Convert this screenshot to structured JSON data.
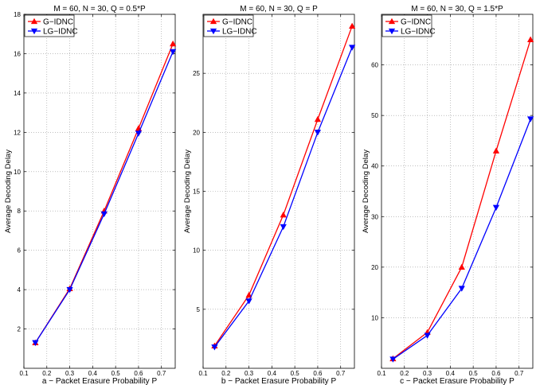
{
  "colors": {
    "g_idnc": "#ff0000",
    "lg_idnc": "#0000ff",
    "grid": "#999999"
  },
  "chart_data": [
    {
      "type": "line",
      "title": "M = 60, N = 30, Q = 0.5*P",
      "xlabel": "a − Packet Erasure Probability P",
      "ylabel": "Average Decoding Delay",
      "xlim": [
        0.1,
        0.76
      ],
      "ylim": [
        0,
        18
      ],
      "xticks": [
        0.1,
        0.2,
        0.3,
        0.4,
        0.5,
        0.6,
        0.7
      ],
      "xtick_labels": [
        "0.1",
        "0.2",
        "0.3",
        "0.4",
        "0.5",
        "0.6",
        "0.7"
      ],
      "yticks": [
        2,
        4,
        6,
        8,
        10,
        12,
        14,
        16,
        18
      ],
      "ytick_labels": [
        "2",
        "4",
        "6",
        "8",
        "10",
        "12",
        "14",
        "16",
        "18"
      ],
      "grid": true,
      "legend": "top-left",
      "x": [
        0.15,
        0.3,
        0.45,
        0.6,
        0.75
      ],
      "series": [
        {
          "name": "G−IDNC",
          "marker": "triangle-up",
          "values": [
            1.3,
            4.05,
            8.0,
            12.2,
            16.5
          ]
        },
        {
          "name": "LG−IDNC",
          "marker": "triangle-down",
          "values": [
            1.3,
            4.0,
            7.85,
            11.95,
            16.1
          ]
        }
      ]
    },
    {
      "type": "line",
      "title": "M = 60, N = 30, Q = P",
      "xlabel": "b − Packet Erasure Probability P",
      "ylabel": "Average Decoding Delay",
      "xlim": [
        0.1,
        0.76
      ],
      "ylim": [
        0,
        30
      ],
      "xticks": [
        0.1,
        0.2,
        0.3,
        0.4,
        0.5,
        0.6,
        0.7
      ],
      "xtick_labels": [
        "0.1",
        "0.2",
        "0.3",
        "0.4",
        "0.5",
        "0.6",
        "0.7"
      ],
      "yticks": [
        5,
        10,
        15,
        20,
        25
      ],
      "ytick_labels": [
        "5",
        "10",
        "15",
        "20",
        "25"
      ],
      "grid": true,
      "legend": "top-left",
      "x": [
        0.15,
        0.3,
        0.45,
        0.6,
        0.75
      ],
      "series": [
        {
          "name": "G−IDNC",
          "marker": "triangle-up",
          "values": [
            1.9,
            6.2,
            13.0,
            21.1,
            29.0
          ]
        },
        {
          "name": "LG−IDNC",
          "marker": "triangle-down",
          "values": [
            1.8,
            5.7,
            12.0,
            20.0,
            27.2
          ]
        }
      ]
    },
    {
      "type": "line",
      "title": "M = 60, N = 30, Q = 1.5*P",
      "xlabel": "c − Packet Erasure Probability P",
      "ylabel": "Average Decoding Delay",
      "xlim": [
        0.1,
        0.76
      ],
      "ylim": [
        0,
        70
      ],
      "xticks": [
        0.1,
        0.2,
        0.3,
        0.4,
        0.5,
        0.6,
        0.7
      ],
      "xtick_labels": [
        "0.1",
        "0.2",
        "0.3",
        "0.4",
        "0.5",
        "0.6",
        "0.7"
      ],
      "yticks": [
        10,
        20,
        30,
        40,
        50,
        60
      ],
      "ytick_labels": [
        "10",
        "20",
        "30",
        "40",
        "50",
        "60"
      ],
      "grid": true,
      "legend": "top-left",
      "x": [
        0.15,
        0.3,
        0.45,
        0.6,
        0.75
      ],
      "series": [
        {
          "name": "G−IDNC",
          "marker": "triangle-up",
          "values": [
            1.9,
            7.1,
            20.0,
            43.0,
            65.0
          ]
        },
        {
          "name": "LG−IDNC",
          "marker": "triangle-down",
          "values": [
            1.8,
            6.5,
            15.8,
            31.8,
            49.3
          ]
        }
      ]
    }
  ]
}
